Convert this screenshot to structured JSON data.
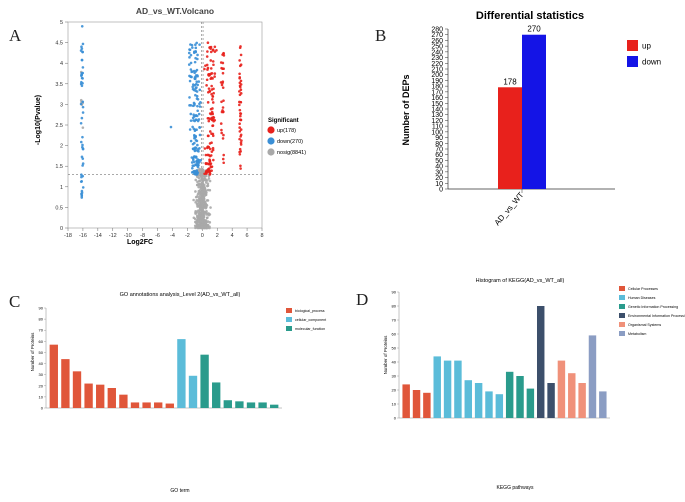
{
  "panel_labels": [
    "A",
    "B",
    "C",
    "D"
  ],
  "chart_data": [
    {
      "type": "scatter",
      "panel": "A",
      "title": "AD_vs_WT.Volcano",
      "xlabel": "Log2FC",
      "ylabel": "-Log10(Pvalue)",
      "xlim": [
        -18,
        8
      ],
      "ylim": [
        0,
        5
      ],
      "xticks": [
        -18,
        -16,
        -14,
        -12,
        -10,
        -8,
        -6,
        -4,
        -2,
        0,
        2,
        4,
        6,
        8
      ],
      "yticks": [
        0,
        0.5,
        1,
        1.5,
        2,
        2.5,
        3,
        3.5,
        4,
        4.5,
        5
      ],
      "threshold_y": 1.3,
      "threshold_x": [
        -0.1,
        0.1
      ],
      "legend_title": "Significant",
      "series": [
        {
          "name": "up(178)",
          "color": "#e8211c"
        },
        {
          "name": "down(270)",
          "color": "#3a8fd6"
        },
        {
          "name": "nosig(8841)",
          "color": "#a9a9a9"
        }
      ]
    },
    {
      "type": "bar",
      "panel": "B",
      "title": "Differential statistics",
      "ylabel": "Number of DEPs",
      "categories": [
        "AD_vs_WT"
      ],
      "series": [
        {
          "name": "up",
          "values": [
            178
          ],
          "color": "#e8211c"
        },
        {
          "name": "down",
          "values": [
            270
          ],
          "color": "#1414e6"
        }
      ],
      "ylim": [
        0,
        280
      ],
      "yticks": [
        0,
        10,
        20,
        30,
        40,
        50,
        60,
        70,
        80,
        90,
        100,
        110,
        120,
        130,
        140,
        150,
        160,
        170,
        180,
        190,
        200,
        210,
        220,
        230,
        240,
        250,
        260,
        270,
        280
      ]
    },
    {
      "type": "bar",
      "panel": "C",
      "title": "GO annotations analysis_Level 2(AD_vs_WT_all)",
      "xlabel": "GO term",
      "ylabel": "Number of Proteins",
      "ylim": [
        0,
        90
      ],
      "yticks": [
        0,
        10,
        20,
        30,
        40,
        50,
        60,
        70,
        80,
        90
      ],
      "legend": [
        {
          "name": "biological_process",
          "color": "#e0563a"
        },
        {
          "name": "cellular_component",
          "color": "#5bbcd9"
        },
        {
          "name": "molecular_function",
          "color": "#2a9b8c"
        }
      ],
      "values": [
        57,
        44,
        33,
        22,
        21,
        18,
        12,
        5,
        5,
        5,
        4,
        62,
        29,
        48,
        23,
        7,
        6,
        5,
        5,
        3
      ],
      "groups": [
        0,
        0,
        0,
        0,
        0,
        0,
        0,
        0,
        0,
        0,
        0,
        1,
        1,
        2,
        2,
        2,
        2,
        2,
        2,
        2
      ]
    },
    {
      "type": "bar",
      "panel": "D",
      "title": "Histogram of KEGG(AD_vs_WT_all)",
      "xlabel": "KEGG pathways",
      "ylabel": "Number of Proteins",
      "ylim": [
        0,
        90
      ],
      "yticks": [
        0,
        10,
        20,
        30,
        40,
        50,
        60,
        70,
        80,
        90
      ],
      "legend": [
        {
          "name": "Cellular Processes",
          "color": "#e0563a"
        },
        {
          "name": "Human Diseases",
          "color": "#5bbcd9"
        },
        {
          "name": "Genetic Information Processing",
          "color": "#2a9b8c"
        },
        {
          "name": "Environmental Information Processing",
          "color": "#3c4f6b"
        },
        {
          "name": "Organismal Systems",
          "color": "#f0917a"
        },
        {
          "name": "Metabolism",
          "color": "#8b9dc3"
        }
      ],
      "values": [
        24,
        20,
        18,
        44,
        41,
        41,
        27,
        25,
        19,
        17,
        33,
        30,
        21,
        80,
        25,
        41,
        32,
        25,
        59,
        19
      ],
      "groups": [
        0,
        0,
        0,
        1,
        1,
        1,
        1,
        1,
        1,
        1,
        2,
        2,
        2,
        3,
        3,
        4,
        4,
        4,
        5,
        5
      ]
    }
  ]
}
